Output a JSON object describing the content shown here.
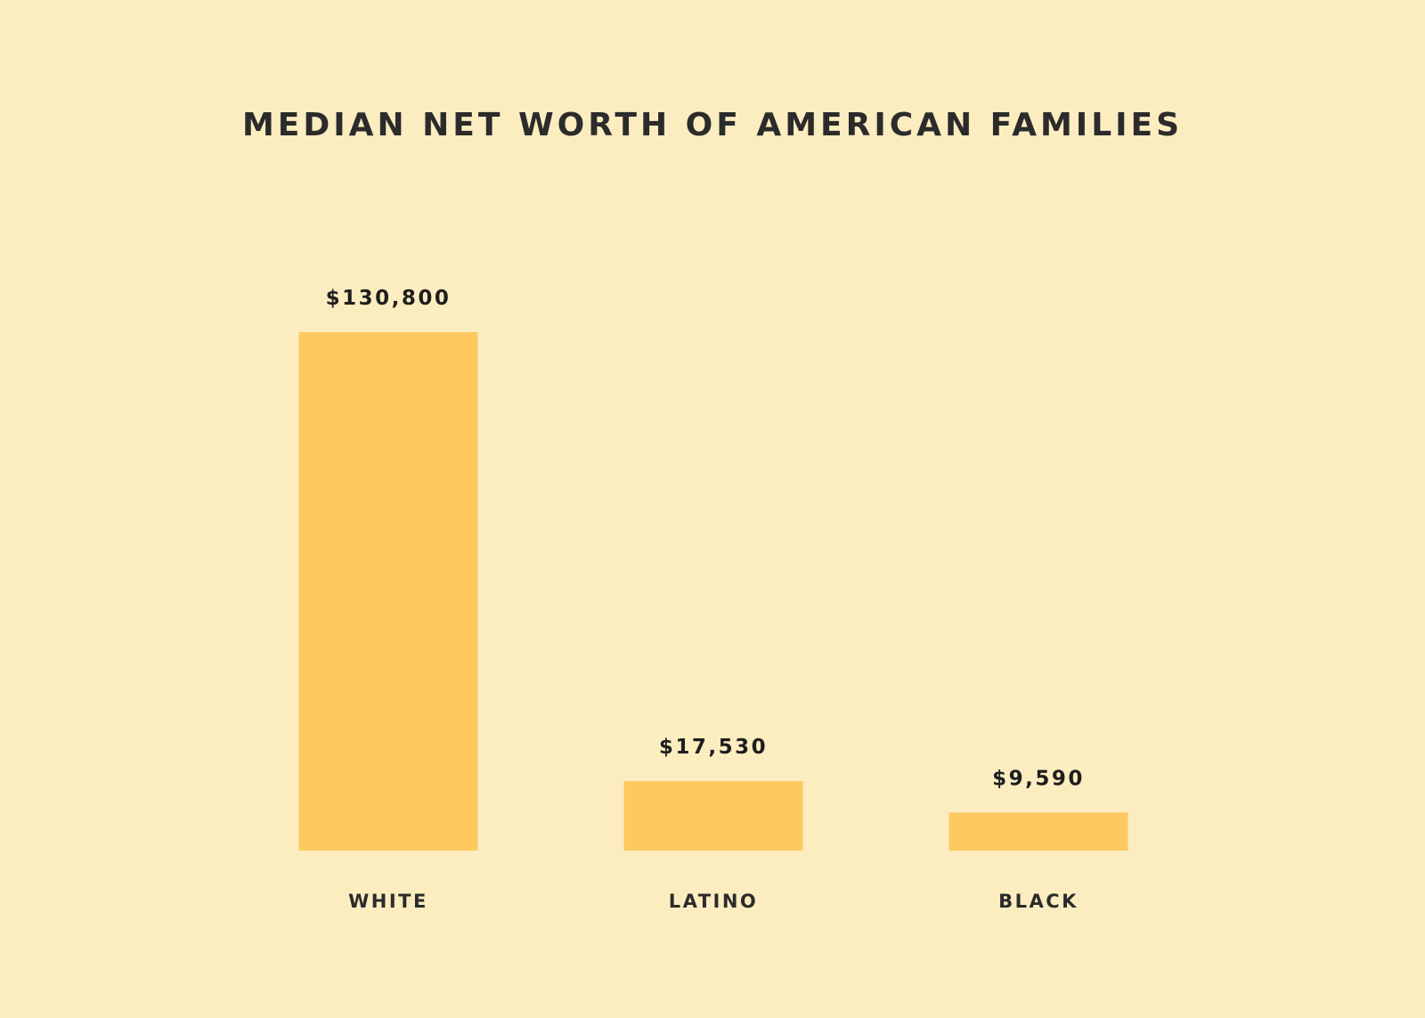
{
  "chart_data": {
    "type": "bar",
    "title": "MEDIAN NET WORTH OF AMERICAN FAMILIES",
    "categories": [
      "WHITE",
      "LATINO",
      "BLACK"
    ],
    "values": [
      130800,
      17530,
      9590
    ],
    "value_labels": [
      "$130,800",
      "$17,530",
      "$9,590"
    ],
    "xlabel": "",
    "ylabel": "",
    "ylim": [
      0,
      130800
    ],
    "grid": false,
    "bar_color": "#fec95f",
    "background_color": "#fcedc0"
  }
}
